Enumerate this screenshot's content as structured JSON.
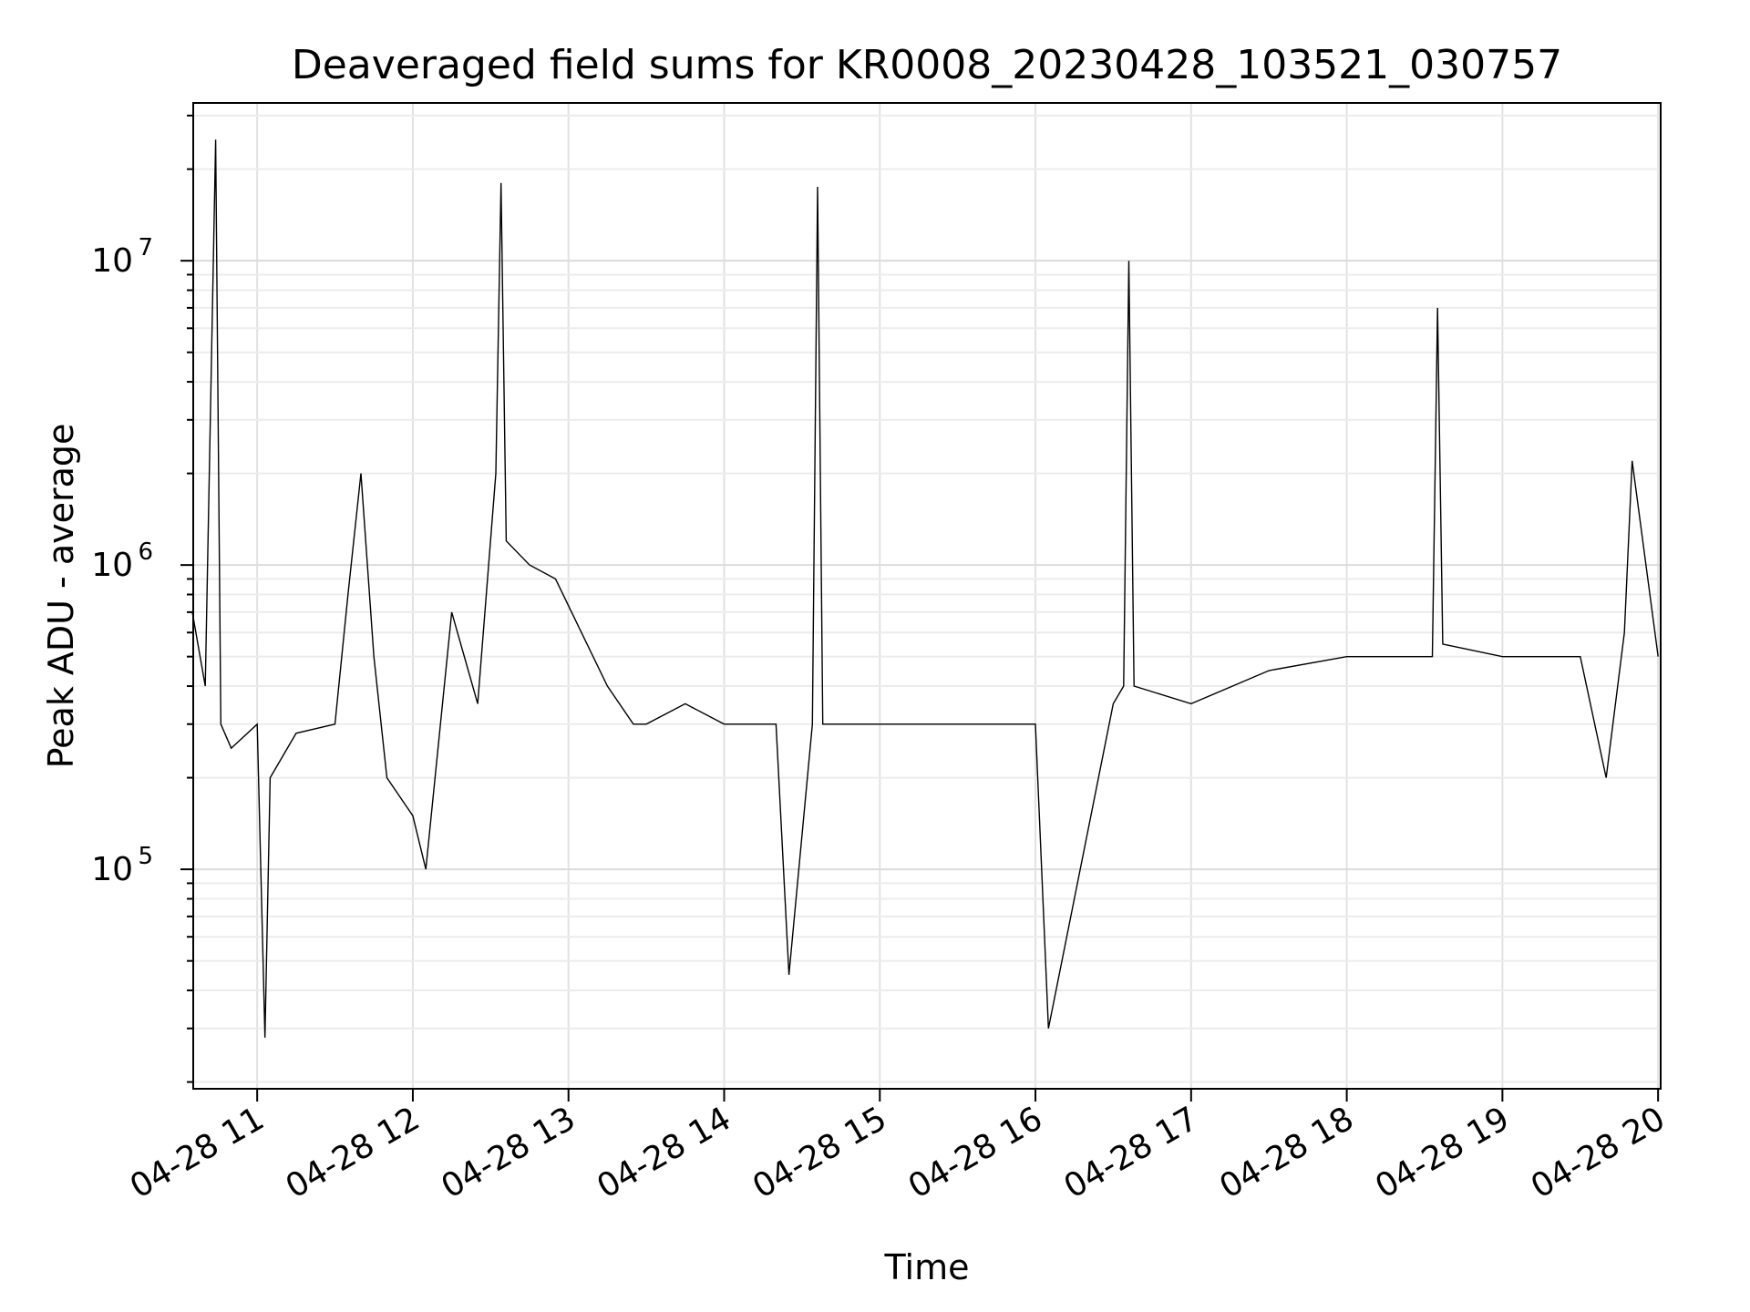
{
  "chart_data": {
    "type": "line",
    "title": "Deaveraged field sums for KR0008_20230428_103521_030757",
    "xlabel": "Time",
    "ylabel": "Peak ADU - average",
    "yscale": "log",
    "ylim": [
      19000,
      33000000
    ],
    "xlim": [
      "2023-04-28 10:35:21",
      "2023-04-28 20:01:00"
    ],
    "grid": true,
    "x_tick_labels": [
      "04-28 11",
      "04-28 12",
      "04-28 13",
      "04-28 14",
      "04-28 15",
      "04-28 16",
      "04-28 17",
      "04-28 18",
      "04-28 19",
      "04-28 20"
    ],
    "y_tick_labels": [
      {
        "base": "10",
        "exp": "5"
      },
      {
        "base": "10",
        "exp": "6"
      },
      {
        "base": "10",
        "exp": "7"
      }
    ],
    "line_color": "#000000",
    "series": [
      {
        "x": [
          "2023-04-28 10:35",
          "2023-04-28 10:40",
          "2023-04-28 10:44",
          "2023-04-28 10:46",
          "2023-04-28 10:50",
          "2023-04-28 11:00",
          "2023-04-28 11:03",
          "2023-04-28 11:05",
          "2023-04-28 11:15",
          "2023-04-28 11:30",
          "2023-04-28 11:35",
          "2023-04-28 11:40",
          "2023-04-28 11:45",
          "2023-04-28 11:50",
          "2023-04-28 12:00",
          "2023-04-28 12:05",
          "2023-04-28 12:15",
          "2023-04-28 12:25",
          "2023-04-28 12:32",
          "2023-04-28 12:34",
          "2023-04-28 12:36",
          "2023-04-28 12:45",
          "2023-04-28 12:55",
          "2023-04-28 13:05",
          "2023-04-28 13:15",
          "2023-04-28 13:25",
          "2023-04-28 13:30",
          "2023-04-28 13:45",
          "2023-04-28 14:00",
          "2023-04-28 14:20",
          "2023-04-28 14:25",
          "2023-04-28 14:34",
          "2023-04-28 14:36",
          "2023-04-28 14:38",
          "2023-04-28 15:00",
          "2023-04-28 15:30",
          "2023-04-28 16:00",
          "2023-04-28 16:05",
          "2023-04-28 16:30",
          "2023-04-28 16:34",
          "2023-04-28 16:36",
          "2023-04-28 16:38",
          "2023-04-28 17:00",
          "2023-04-28 17:30",
          "2023-04-28 18:00",
          "2023-04-28 18:33",
          "2023-04-28 18:35",
          "2023-04-28 18:37",
          "2023-04-28 19:00",
          "2023-04-28 19:30",
          "2023-04-28 19:40",
          "2023-04-28 19:47",
          "2023-04-28 19:50",
          "2023-04-28 20:00"
        ],
        "y": [
          700000,
          400000,
          25000000,
          300000,
          250000,
          300000,
          28000,
          200000,
          280000,
          300000,
          800000,
          2000000,
          500000,
          200000,
          150000,
          100000,
          700000,
          350000,
          2000000,
          18000000,
          1200000,
          1000000,
          900000,
          600000,
          400000,
          300000,
          300000,
          350000,
          300000,
          300000,
          45000,
          300000,
          17500000,
          300000,
          300000,
          300000,
          300000,
          30000,
          350000,
          400000,
          10000000,
          400000,
          350000,
          450000,
          500000,
          500000,
          7000000,
          550000,
          500000,
          500000,
          200000,
          600000,
          2200000,
          500000
        ]
      }
    ]
  }
}
